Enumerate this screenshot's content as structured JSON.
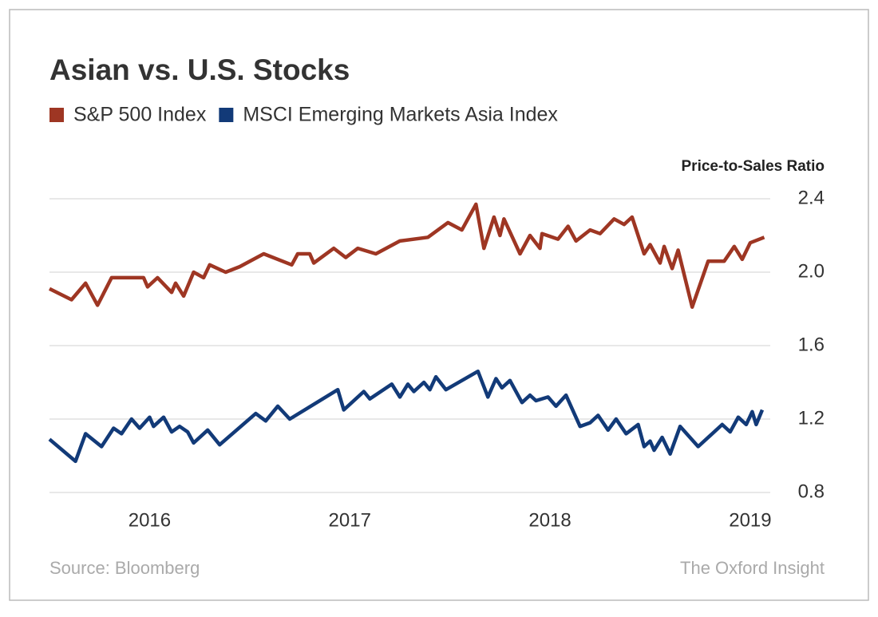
{
  "chart_data": {
    "type": "line",
    "title": "Asian vs. U.S. Stocks",
    "y_axis_label": "Price-to-Sales Ratio",
    "source": "Source: Bloomberg",
    "credit": "The Oxford Insight",
    "xlim": [
      2015.5,
      2019.1
    ],
    "xticks": [
      2016,
      2017,
      2018,
      2019
    ],
    "ylim": [
      0.8,
      2.4
    ],
    "yticks": [
      {
        "value": 0.8,
        "label": "0.8"
      },
      {
        "value": 1.2,
        "label": "1.2"
      },
      {
        "value": 1.6,
        "label": "1.6"
      },
      {
        "value": 2.0,
        "label": "2.0"
      },
      {
        "value": 2.4,
        "label": "2.4"
      }
    ],
    "grid": true,
    "series": [
      {
        "name": "S&P 500 Index",
        "color": "#9e3623",
        "x": [
          2015.5,
          2015.61,
          2015.68,
          2015.74,
          2015.81,
          2015.97,
          2015.99,
          2016.04,
          2016.11,
          2016.13,
          2016.17,
          2016.22,
          2016.27,
          2016.3,
          2016.38,
          2016.45,
          2016.57,
          2016.71,
          2016.74,
          2016.8,
          2016.82,
          2016.92,
          2016.98,
          2017.04,
          2017.13,
          2017.25,
          2017.39,
          2017.49,
          2017.56,
          2017.63,
          2017.67,
          2017.72,
          2017.75,
          2017.77,
          2017.85,
          2017.9,
          2017.95,
          2017.96,
          2018.04,
          2018.09,
          2018.13,
          2018.2,
          2018.25,
          2018.32,
          2018.37,
          2018.41,
          2018.47,
          2018.5,
          2018.55,
          2018.57,
          2018.61,
          2018.64,
          2018.71,
          2018.79,
          2018.87,
          2018.92,
          2018.96,
          2019.0,
          2019.07
        ],
        "values": [
          1.91,
          1.85,
          1.94,
          1.82,
          1.97,
          1.97,
          1.92,
          1.97,
          1.89,
          1.94,
          1.87,
          2.0,
          1.97,
          2.04,
          2.0,
          2.03,
          2.1,
          2.04,
          2.1,
          2.1,
          2.05,
          2.13,
          2.08,
          2.13,
          2.1,
          2.17,
          2.19,
          2.27,
          2.23,
          2.37,
          2.13,
          2.3,
          2.2,
          2.29,
          2.1,
          2.2,
          2.13,
          2.21,
          2.18,
          2.25,
          2.17,
          2.23,
          2.21,
          2.29,
          2.26,
          2.3,
          2.1,
          2.15,
          2.05,
          2.14,
          2.02,
          2.12,
          1.81,
          2.06,
          2.06,
          2.14,
          2.07,
          2.16,
          2.19
        ]
      },
      {
        "name": "MSCI Emerging Markets Asia Index",
        "color": "#123a78",
        "x": [
          2015.5,
          2015.63,
          2015.68,
          2015.76,
          2015.82,
          2015.86,
          2015.91,
          2015.95,
          2016.0,
          2016.02,
          2016.07,
          2016.11,
          2016.15,
          2016.19,
          2016.22,
          2016.29,
          2016.35,
          2016.53,
          2016.58,
          2016.64,
          2016.7,
          2016.94,
          2016.97,
          2017.07,
          2017.1,
          2017.21,
          2017.25,
          2017.29,
          2017.32,
          2017.37,
          2017.4,
          2017.43,
          2017.48,
          2017.64,
          2017.69,
          2017.73,
          2017.76,
          2017.8,
          2017.86,
          2017.9,
          2017.93,
          2017.99,
          2018.03,
          2018.08,
          2018.15,
          2018.2,
          2018.24,
          2018.29,
          2018.33,
          2018.38,
          2018.44,
          2018.47,
          2018.5,
          2018.52,
          2018.56,
          2018.6,
          2018.65,
          2018.74,
          2018.86,
          2018.9,
          2018.94,
          2018.98,
          2019.01,
          2019.03,
          2019.06
        ],
        "values": [
          1.09,
          0.97,
          1.12,
          1.05,
          1.15,
          1.12,
          1.2,
          1.15,
          1.21,
          1.16,
          1.21,
          1.13,
          1.16,
          1.13,
          1.07,
          1.14,
          1.06,
          1.23,
          1.19,
          1.27,
          1.2,
          1.36,
          1.25,
          1.35,
          1.31,
          1.39,
          1.32,
          1.39,
          1.35,
          1.4,
          1.36,
          1.43,
          1.36,
          1.46,
          1.32,
          1.42,
          1.37,
          1.41,
          1.29,
          1.33,
          1.3,
          1.32,
          1.27,
          1.33,
          1.16,
          1.18,
          1.22,
          1.14,
          1.2,
          1.12,
          1.17,
          1.05,
          1.08,
          1.03,
          1.1,
          1.01,
          1.16,
          1.05,
          1.17,
          1.13,
          1.21,
          1.17,
          1.24,
          1.17,
          1.25
        ]
      }
    ]
  }
}
